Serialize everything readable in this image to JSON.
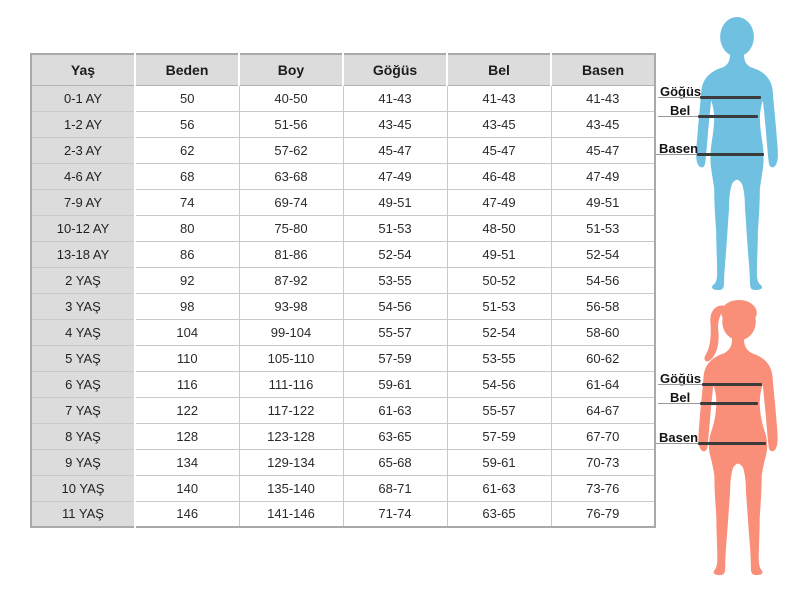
{
  "table": {
    "columns": [
      "Yaş",
      "Beden",
      "Boy",
      "Göğüs",
      "Bel",
      "Basen"
    ],
    "rows": [
      [
        "0-1 AY",
        "50",
        "40-50",
        "41-43",
        "41-43",
        "41-43"
      ],
      [
        "1-2 AY",
        "56",
        "51-56",
        "43-45",
        "43-45",
        "43-45"
      ],
      [
        "2-3 AY",
        "62",
        "57-62",
        "45-47",
        "45-47",
        "45-47"
      ],
      [
        "4-6 AY",
        "68",
        "63-68",
        "47-49",
        "46-48",
        "47-49"
      ],
      [
        "7-9 AY",
        "74",
        "69-74",
        "49-51",
        "47-49",
        "49-51"
      ],
      [
        "10-12 AY",
        "80",
        "75-80",
        "51-53",
        "48-50",
        "51-53"
      ],
      [
        "13-18 AY",
        "86",
        "81-86",
        "52-54",
        "49-51",
        "52-54"
      ],
      [
        "2 YAŞ",
        "92",
        "87-92",
        "53-55",
        "50-52",
        "54-56"
      ],
      [
        "3 YAŞ",
        "98",
        "93-98",
        "54-56",
        "51-53",
        "56-58"
      ],
      [
        "4 YAŞ",
        "104",
        "99-104",
        "55-57",
        "52-54",
        "58-60"
      ],
      [
        "5 YAŞ",
        "110",
        "105-110",
        "57-59",
        "53-55",
        "60-62"
      ],
      [
        "6 YAŞ",
        "116",
        "111-116",
        "59-61",
        "54-56",
        "61-64"
      ],
      [
        "7 YAŞ",
        "122",
        "117-122",
        "61-63",
        "55-57",
        "64-67"
      ],
      [
        "8 YAŞ",
        "128",
        "123-128",
        "63-65",
        "57-59",
        "67-70"
      ],
      [
        "9 YAŞ",
        "134",
        "129-134",
        "65-68",
        "59-61",
        "70-73"
      ],
      [
        "10 YAŞ",
        "140",
        "135-140",
        "68-71",
        "61-63",
        "73-76"
      ],
      [
        "11 YAŞ",
        "146",
        "141-146",
        "71-74",
        "63-65",
        "76-79"
      ]
    ]
  },
  "figures": [
    {
      "id": "child-blue",
      "color": "#6FC0E1",
      "measurements": [
        {
          "label": "Göğüs"
        },
        {
          "label": "Bel"
        },
        {
          "label": "Basen"
        }
      ]
    },
    {
      "id": "girl-pink",
      "color": "#F98E79",
      "measurements": [
        {
          "label": "Göğüs"
        },
        {
          "label": "Bel"
        },
        {
          "label": "Basen"
        }
      ]
    }
  ],
  "colors": {
    "figure_blue": "#6FC0E1",
    "figure_pink": "#F98E79",
    "header_bg": "#dcdcdc",
    "cell_border": "#c9c9c9",
    "measure_line_dark": "#3b3b3b",
    "measure_line_thin": "#9a9a9a"
  }
}
